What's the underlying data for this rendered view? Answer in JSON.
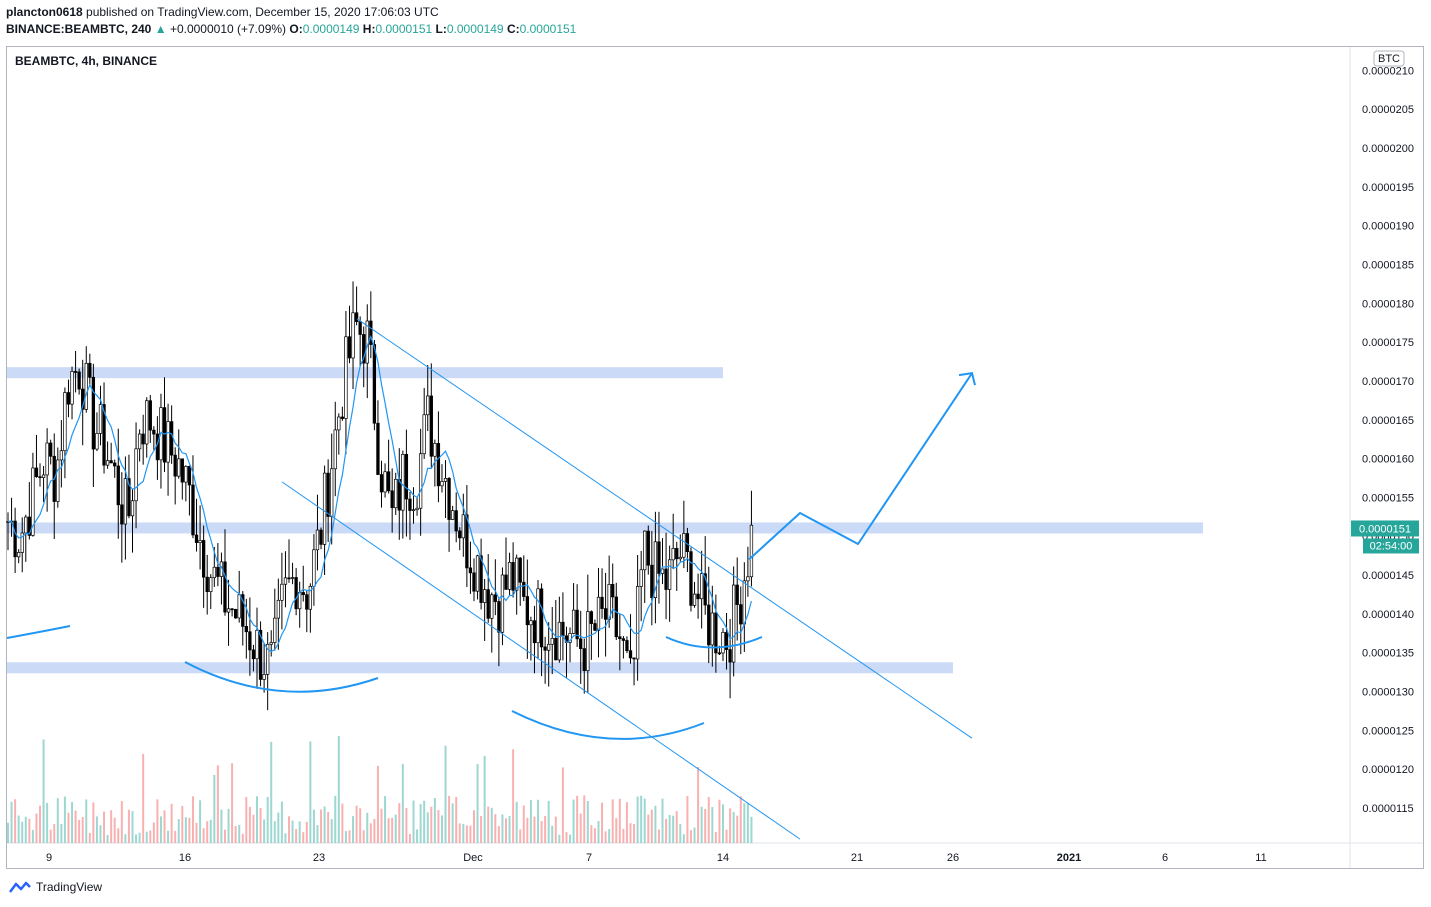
{
  "header": {
    "publisher": "plancton0618",
    "published_text": " published on TradingView.com, December 15, 2020 17:06:03 UTC",
    "symbol_line": "BINANCE:BEAMBTC, 240",
    "change": "+0.0000010 (+7.09%)",
    "o_label": "O:",
    "o_value": "0.0000149",
    "h_label": "H:",
    "h_value": "0.0000151",
    "l_label": "L:",
    "l_value": "0.0000149",
    "c_label": "C:",
    "c_value": "0.0000151"
  },
  "pane_title": "BEAMBTC, 4h, BINANCE",
  "footer": {
    "brand": "TradingView"
  },
  "colors": {
    "up": "#26a69a",
    "down": "#ef5350",
    "ma": "#2196f3",
    "zone": "#c5d6f5",
    "candle_up_body": "#ffffff",
    "candle_edge": "#000000"
  },
  "chart_data": {
    "type": "candlestick",
    "currency": "BTC",
    "y_ticks": [
      "0.0000210",
      "0.0000205",
      "0.0000200",
      "0.0000195",
      "0.0000190",
      "0.0000185",
      "0.0000180",
      "0.0000175",
      "0.0000170",
      "0.0000165",
      "0.0000160",
      "0.0000155",
      "0.0000150",
      "0.0000145",
      "0.0000140",
      "0.0000135",
      "0.0000130",
      "0.0000125",
      "0.0000120",
      "0.0000115"
    ],
    "x_ticks": [
      "9",
      "16",
      "23",
      "Dec",
      "7",
      "14",
      "21",
      "26",
      "2021",
      "6",
      "11"
    ],
    "x_ticks_bold": [
      "2021"
    ],
    "last_price": "0.0000151",
    "countdown": "02:54:00",
    "ylim": [
      1.105e-05,
      2.13e-05
    ],
    "ohlc_anchor_prices": [
      1.52e-05,
      1.5e-05,
      1.55e-05,
      1.6e-05,
      1.58e-05,
      1.7e-05,
      1.72e-05,
      1.65e-05,
      1.62e-05,
      1.57e-05,
      1.52e-05,
      1.65e-05,
      1.65e-05,
      1.62e-05,
      1.6e-05,
      1.56e-05,
      1.5e-05,
      1.45e-05,
      1.42e-05,
      1.4e-05,
      1.38e-05,
      1.35e-05,
      1.33e-05,
      1.42e-05,
      1.45e-05,
      1.43e-05,
      1.5e-05,
      1.6e-05,
      1.7e-05,
      1.77e-05,
      1.75e-05,
      1.6e-05,
      1.52e-05,
      1.58e-05,
      1.57e-05,
      1.65e-05,
      1.6e-05,
      1.55e-05,
      1.5e-05,
      1.47e-05,
      1.43e-05,
      1.42e-05,
      1.45e-05,
      1.41e-05,
      1.4e-05,
      1.39e-05,
      1.38e-05,
      1.37e-05,
      1.36e-05,
      1.38e-05,
      1.4e-05,
      1.37e-05,
      1.3e-05,
      1.48e-05,
      1.45e-05,
      1.44e-05,
      1.48e-05,
      1.45e-05,
      1.4e-05,
      1.38e-05,
      1.37e-05,
      1.42e-05,
      1.5e-05
    ],
    "horizontal_zones": [
      1.71e-05,
      1.51e-05,
      1.33e-05
    ],
    "projection_path": [
      1.47e-05,
      1.53e-05,
      1.49e-05,
      1.71e-05
    ]
  }
}
